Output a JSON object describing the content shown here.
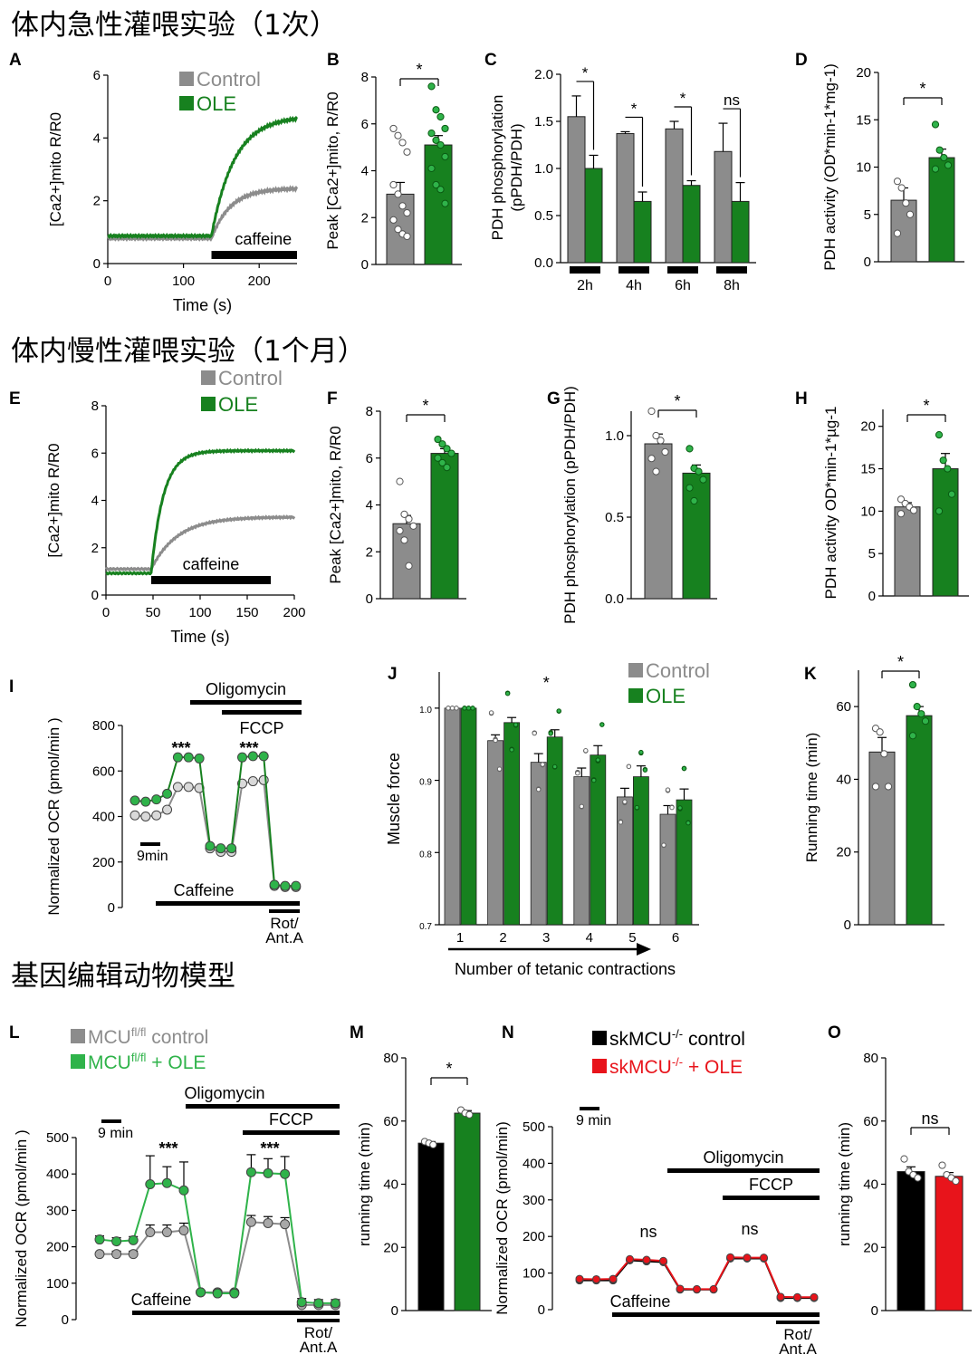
{
  "sections": [
    "体内急性灌喂实验（1次）",
    "体内慢性灌喂实验（1个月）",
    "基因编辑动物模型"
  ],
  "colors": {
    "control": "#8c8c8c",
    "ole": "#17811f",
    "ole_light": "#2fb34a",
    "ko": "#000000",
    "ko_ole": "#e8141b"
  },
  "legends": {
    "acute": [
      "Control",
      "OLE"
    ],
    "chronic": [
      "Control",
      "OLE"
    ],
    "j": [
      "Control",
      "OLE"
    ],
    "l": [
      "MCU^fl/fl control",
      "MCU^fl/fl + OLE"
    ],
    "n": [
      "skMCU^-/- control",
      "skMCU^-/- + OLE"
    ]
  },
  "chart_data": [
    {
      "panel": "A",
      "type": "line",
      "xlabel": "Time (s)",
      "ylabel": "[Ca2+]mito R/R0",
      "xlim": [
        0,
        250
      ],
      "ylim": [
        0,
        6
      ],
      "xticks": [
        0,
        100,
        200
      ],
      "yticks": [
        0,
        2,
        4,
        6
      ],
      "annotation": "caffeine",
      "stim_start": 137,
      "stim_end": 250,
      "series": [
        {
          "name": "Control",
          "baseline": 0.8,
          "plateau": 2.4,
          "tau": 25
        },
        {
          "name": "OLE",
          "baseline": 0.88,
          "plateau": 4.7,
          "tau": 30
        }
      ]
    },
    {
      "panel": "B",
      "type": "bar",
      "ylabel": "Peak [Ca2+]mito, R/R0",
      "ylim": [
        0,
        8
      ],
      "yticks": [
        0,
        2,
        4,
        6,
        8
      ],
      "sig": "*",
      "series": [
        {
          "name": "Control",
          "mean": 3.0,
          "sem": 0.5,
          "points": [
            5.8,
            5.5,
            5.2,
            4.8,
            3.4,
            3.0,
            2.5,
            2.2,
            1.9,
            1.5,
            1.3,
            1.2
          ]
        },
        {
          "name": "OLE",
          "mean": 5.1,
          "sem": 0.4,
          "points": [
            7.6,
            6.6,
            6.3,
            5.8,
            5.6,
            5.3,
            5.1,
            4.6,
            4.1,
            3.4,
            3.2,
            2.6
          ]
        }
      ]
    },
    {
      "panel": "C",
      "type": "bar",
      "ylabel": "PDH phosphorylation (pPDH/PDH)",
      "ylim": [
        0,
        2.0
      ],
      "yticks": [
        0.0,
        0.5,
        1.0,
        1.5,
        2.0
      ],
      "categories": [
        "2h",
        "4h",
        "6h",
        "8h"
      ],
      "sig": [
        "*",
        "*",
        "*",
        "ns"
      ],
      "series": [
        {
          "name": "Control",
          "values": [
            1.55,
            1.37,
            1.42,
            1.18
          ],
          "sem": [
            0.22,
            0.02,
            0.08,
            0.3
          ]
        },
        {
          "name": "OLE",
          "values": [
            1.0,
            0.65,
            0.82,
            0.65
          ],
          "sem": [
            0.14,
            0.1,
            0.05,
            0.2
          ]
        }
      ]
    },
    {
      "panel": "D",
      "type": "bar",
      "ylabel": "PDH activity (OD*min-1*mg-1)",
      "ylim": [
        0,
        20
      ],
      "yticks": [
        0,
        5,
        10,
        15,
        20
      ],
      "sig": "*",
      "series": [
        {
          "name": "Control",
          "mean": 6.5,
          "sem": 1.3,
          "points": [
            8.5,
            7.8,
            6.2,
            5.0,
            3.0
          ]
        },
        {
          "name": "OLE",
          "mean": 11.0,
          "sem": 0.9,
          "points": [
            14.5,
            11.8,
            11.0,
            10.2,
            9.8
          ]
        }
      ]
    },
    {
      "panel": "E",
      "type": "line",
      "xlabel": "Time (s)",
      "ylabel": "[Ca2+]mito R/R0",
      "xlim": [
        0,
        200
      ],
      "ylim": [
        0,
        8
      ],
      "xticks": [
        0,
        50,
        100,
        150,
        200
      ],
      "yticks": [
        0,
        2,
        4,
        6,
        8
      ],
      "annotation": "caffeine",
      "stim_start": 48,
      "stim_end": 175,
      "series": [
        {
          "name": "Control",
          "baseline": 1.1,
          "plateau": 3.3,
          "tau": 28
        },
        {
          "name": "OLE",
          "baseline": 0.92,
          "plateau": 6.1,
          "tau": 13
        }
      ]
    },
    {
      "panel": "F",
      "type": "bar",
      "ylabel": "Peak [Ca2+]mito, R/R0",
      "ylim": [
        0,
        8
      ],
      "yticks": [
        0,
        2,
        4,
        6,
        8
      ],
      "sig": "*",
      "series": [
        {
          "name": "Control",
          "mean": 3.2,
          "sem": 0.35,
          "points": [
            5.0,
            3.6,
            3.4,
            3.1,
            2.9,
            2.5,
            1.4
          ]
        },
        {
          "name": "OLE",
          "mean": 6.2,
          "sem": 0.2,
          "points": [
            6.8,
            6.6,
            6.4,
            6.2,
            6.0,
            5.8,
            5.6
          ]
        }
      ]
    },
    {
      "panel": "G",
      "type": "bar",
      "ylabel": "PDH phosphorylation (pPDH/PDH)",
      "ylim": [
        0,
        1.15
      ],
      "yticks": [
        0.0,
        0.5,
        1.0
      ],
      "sig": "*",
      "series": [
        {
          "name": "Control",
          "mean": 0.95,
          "sem": 0.06,
          "points": [
            1.15,
            1.0,
            0.97,
            0.9,
            0.86,
            0.78
          ]
        },
        {
          "name": "OLE",
          "mean": 0.77,
          "sem": 0.05,
          "points": [
            0.92,
            0.8,
            0.78,
            0.73,
            0.68,
            0.6
          ]
        }
      ]
    },
    {
      "panel": "H",
      "type": "bar",
      "ylabel": "PDH activity OD*min-1*µg-1",
      "ylim": [
        0,
        22
      ],
      "yticks": [
        0,
        5,
        10,
        15,
        20
      ],
      "sig": "*",
      "series": [
        {
          "name": "Control",
          "mean": 10.5,
          "sem": 0.5,
          "points": [
            11.4,
            10.9,
            10.5,
            10.1,
            9.7
          ]
        },
        {
          "name": "OLE",
          "mean": 15.0,
          "sem": 1.8,
          "points": [
            19.0,
            16.0,
            15.0,
            12.0,
            10.0
          ]
        }
      ]
    },
    {
      "panel": "I",
      "type": "line",
      "ylabel": "Normalized OCR (pmol/min )",
      "ylim": [
        0,
        800
      ],
      "yticks": [
        0,
        200,
        400,
        600,
        800
      ],
      "scalebar": "9min",
      "labels": {
        "oligomycin": "Oligomycin",
        "fccp": "FCCP",
        "caffeine": "Caffeine",
        "rot": "Rot/ Ant.A",
        "sig1": "***",
        "sig2": "***"
      },
      "series": [
        {
          "name": "Control",
          "values": [
            405,
            400,
            405,
            430,
            530,
            530,
            525,
            260,
            245,
            245,
            545,
            555,
            560,
            95,
            90,
            90
          ]
        },
        {
          "name": "OLE",
          "values": [
            470,
            465,
            475,
            500,
            660,
            660,
            655,
            270,
            260,
            260,
            660,
            665,
            665,
            100,
            95,
            95
          ]
        }
      ]
    },
    {
      "panel": "J",
      "type": "bar",
      "xlabel": "Number of tetanic contractions",
      "ylabel": "Muscle force",
      "ylim": [
        0.7,
        1.05
      ],
      "yticks": [
        0.7,
        0.8,
        0.9,
        1.0
      ],
      "categories": [
        "1",
        "2",
        "3",
        "4",
        "5",
        "6"
      ],
      "sig_index": 2,
      "sig": "*",
      "series": [
        {
          "name": "Control",
          "values": [
            1.0,
            0.955,
            0.925,
            0.905,
            0.877,
            0.853
          ],
          "sem": [
            0.0,
            0.008,
            0.012,
            0.012,
            0.012,
            0.012
          ]
        },
        {
          "name": "OLE",
          "values": [
            1.0,
            0.98,
            0.96,
            0.935,
            0.905,
            0.873
          ],
          "sem": [
            0.0,
            0.007,
            0.01,
            0.013,
            0.015,
            0.015
          ]
        }
      ]
    },
    {
      "panel": "K",
      "type": "bar",
      "ylabel": "Running time (min)",
      "ylim": [
        0,
        70
      ],
      "yticks": [
        0,
        20,
        40,
        60
      ],
      "sig": "*",
      "series": [
        {
          "name": "Control",
          "mean": 47.5,
          "sem": 4,
          "points": [
            54,
            53,
            47,
            38,
            38
          ]
        },
        {
          "name": "OLE",
          "mean": 57.5,
          "sem": 2.5,
          "points": [
            66,
            60,
            58,
            56,
            52
          ]
        }
      ]
    },
    {
      "panel": "L",
      "type": "line",
      "ylabel": "Normalized OCR (pmol/min )",
      "ylim": [
        0,
        500
      ],
      "yticks": [
        0,
        100,
        200,
        300,
        400,
        500
      ],
      "scalebar": "9 min",
      "labels": {
        "oligomycin": "Oligomycin",
        "fccp": "FCCP",
        "caffeine": "Caffeine",
        "rot": "Rot/ Ant.A",
        "sig1": "***",
        "sig2": "***"
      },
      "series": [
        {
          "name": "MCU control",
          "values": [
            180,
            180,
            180,
            240,
            240,
            245,
            75,
            75,
            75,
            268,
            265,
            262,
            40,
            40,
            40
          ]
        },
        {
          "name": "MCU + OLE",
          "values": [
            220,
            215,
            218,
            372,
            375,
            355,
            75,
            72,
            72,
            405,
            402,
            400,
            48,
            45,
            45
          ]
        }
      ]
    },
    {
      "panel": "M",
      "type": "bar",
      "ylabel": "running time (min)",
      "ylim": [
        0,
        80
      ],
      "yticks": [
        0,
        20,
        40,
        60,
        80
      ],
      "sig": "*",
      "series": [
        {
          "name": "MCU control",
          "mean": 53,
          "sem": 0.5,
          "points": [
            53.5,
            53,
            52.5
          ]
        },
        {
          "name": "MCU + OLE",
          "mean": 62.5,
          "sem": 0.8,
          "points": [
            63.5,
            62.5,
            62
          ]
        }
      ]
    },
    {
      "panel": "N",
      "type": "line",
      "ylabel": "Normalized OCR (pmol/min)",
      "ylim": [
        0,
        500
      ],
      "yticks": [
        0,
        100,
        200,
        300,
        400,
        500
      ],
      "scalebar": "9 min",
      "labels": {
        "oligomycin": "Oligomycin",
        "fccp": "FCCP",
        "caffeine": "Caffeine",
        "rot": "Rot/ Ant.A",
        "sig1": "ns",
        "sig2": "ns"
      },
      "series": [
        {
          "name": "skMCU control",
          "values": [
            80,
            80,
            80,
            135,
            132,
            130,
            55,
            55,
            55,
            140,
            140,
            140,
            32,
            32,
            32
          ]
        },
        {
          "name": "skMCU + OLE",
          "values": [
            84,
            83,
            84,
            138,
            136,
            133,
            57,
            56,
            56,
            143,
            142,
            142,
            35,
            34,
            34
          ]
        }
      ]
    },
    {
      "panel": "O",
      "type": "bar",
      "ylabel": "running time (min)",
      "ylim": [
        0,
        80
      ],
      "yticks": [
        0,
        20,
        40,
        60,
        80
      ],
      "sig": "ns",
      "series": [
        {
          "name": "skMCU control",
          "mean": 44,
          "sem": 1.5,
          "points": [
            48,
            44,
            43,
            42
          ]
        },
        {
          "name": "skMCU + OLE",
          "mean": 42.5,
          "sem": 1.2,
          "points": [
            46,
            43,
            42,
            41
          ]
        }
      ]
    }
  ]
}
